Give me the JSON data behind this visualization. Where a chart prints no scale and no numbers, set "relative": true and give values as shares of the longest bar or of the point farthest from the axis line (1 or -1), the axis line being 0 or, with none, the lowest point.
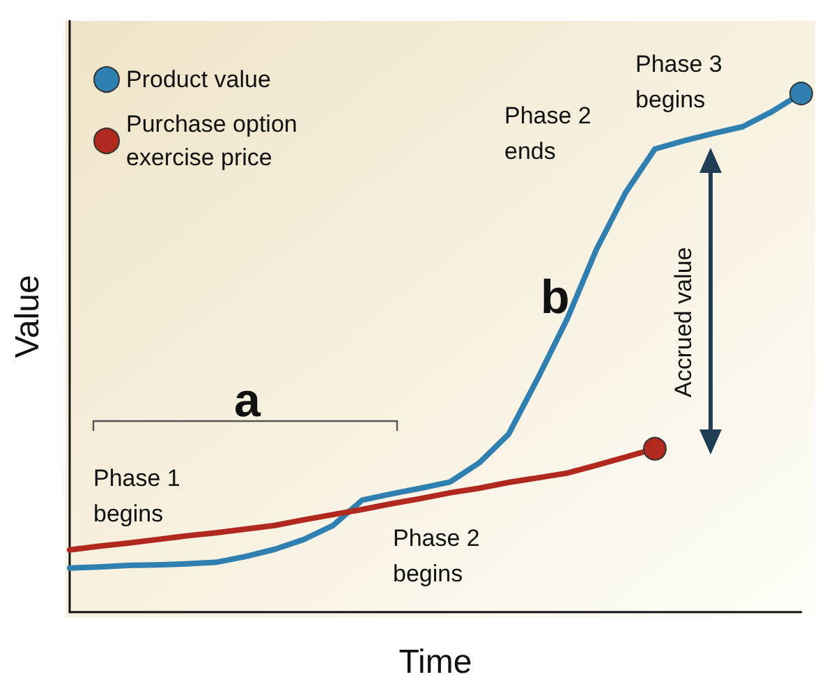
{
  "chart_data": {
    "type": "line",
    "relative": true,
    "xlabel": "Time",
    "ylabel": "Value",
    "categories": [
      null,
      null,
      null,
      null,
      null,
      null,
      null,
      null,
      null,
      null,
      null,
      null,
      null,
      null,
      null,
      null,
      null,
      null,
      null,
      null,
      null,
      null,
      null,
      null,
      null,
      null
    ],
    "grid": false,
    "legend": "top left",
    "marker": "none",
    "line_style": "solid",
    "series": [
      {
        "name": "Product value",
        "color": "#2f7fb0",
        "values": [
          0.085,
          0.087,
          0.09,
          0.091,
          0.093,
          0.096,
          0.107,
          0.121,
          0.14,
          0.167,
          0.216,
          0.228,
          0.239,
          0.251,
          0.288,
          0.343,
          0.451,
          0.565,
          0.699,
          0.809,
          0.893,
          0.909,
          0.923,
          0.936,
          0.965,
          1
        ]
      },
      {
        "name": "Purchase option exercise price",
        "color": "#b0281e",
        "values": [
          0.12,
          0.127,
          0.133,
          0.14,
          0.147,
          0.153,
          0.16,
          0.167,
          0.178,
          0.188,
          0.198,
          0.209,
          0.219,
          0.23,
          0.239,
          0.25,
          0.259,
          0.268,
          0.283,
          0.299,
          0.315,
          null,
          null,
          null,
          null,
          null
        ]
      }
    ],
    "annotations": [
      "a",
      "b",
      "Phase 1\nbegins",
      "Phase 2\nbegins",
      "Phase 2\nends",
      "Phase 3\nbegins",
      "Accrued value"
    ]
  }
}
